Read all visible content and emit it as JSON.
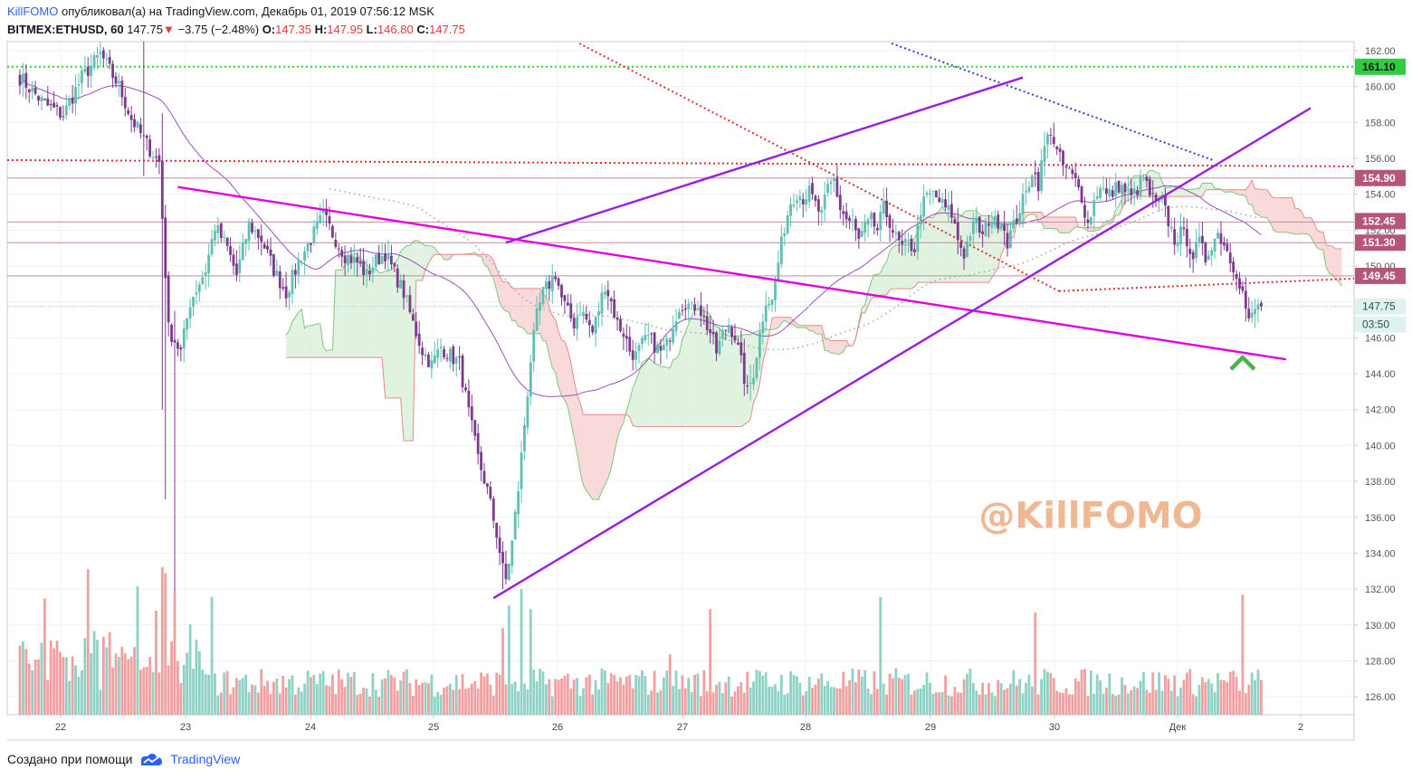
{
  "header": {
    "author": "KillFOMO",
    "published_text": "опубликовал(а) на TradingView.com, Декабрь 01, 2019 07:56:12 MSK",
    "symbol": "BITMEX:ETHUSD, 60",
    "last": "147.75",
    "change_arrow": "▼",
    "change": "−3.75 (−2.48%)",
    "o_label": "O:",
    "o_value": "147.35",
    "h_label": "H:",
    "h_value": "147.95",
    "l_label": "L:",
    "l_value": "146.80",
    "c_label": "C:",
    "c_value": "147.75"
  },
  "footer": {
    "created_with": "Создано при помощи",
    "brand": "TradingView",
    "logo_icon": "tradingview-logo-icon"
  },
  "watermark": "@KillFOMO",
  "colors": {
    "bull": "#5fbfb0",
    "bear": "#7b3a8a",
    "vol_up": "#8fd1c5",
    "vol_down": "#f0a0a0",
    "trendline_magenta": "#e000e0",
    "trendline_purple": "#9b1de0",
    "support_green": "#22dd22",
    "level_red": "#e03030",
    "level_blue": "#3040d0",
    "cloud_red": "#f7d0d0",
    "cloud_green": "#d8efd8",
    "price_tag": "#b5557a",
    "green_tag": "#2ecc40",
    "watermark": "#f0b890",
    "arrow": "#4caf50"
  },
  "chart_data": {
    "type": "candlestick",
    "symbol": "BITMEX:ETHUSD",
    "interval": "60",
    "ylim": [
      125,
      162.5
    ],
    "grid": true,
    "y_ticks": [
      126,
      128,
      130,
      132,
      134,
      136,
      138,
      140,
      142,
      144,
      146,
      148,
      150,
      152,
      154,
      156,
      158,
      160,
      162
    ],
    "x_ticks": [
      "22",
      "23",
      "24",
      "25",
      "26",
      "27",
      "28",
      "29",
      "30",
      "Дек",
      "2"
    ],
    "price_labels": [
      {
        "text": "161.10",
        "value": 161.1,
        "style": "green"
      },
      {
        "text": "154.90",
        "value": 154.9,
        "style": "level"
      },
      {
        "text": "152.45",
        "value": 152.45,
        "style": "level"
      },
      {
        "text": "151.30",
        "value": 151.3,
        "style": "level"
      },
      {
        "text": "149.45",
        "value": 149.45,
        "style": "level"
      },
      {
        "text": "147.75",
        "value": 147.75,
        "style": "last"
      },
      {
        "text": "03:50",
        "value": 146.8,
        "style": "countdown"
      }
    ],
    "horizontal_levels": [
      161.1,
      155.9,
      154.9,
      152.45,
      151.3,
      149.45
    ],
    "close_path": [
      [
        0,
        160.5
      ],
      [
        8,
        159.0
      ],
      [
        14,
        158.4
      ],
      [
        20,
        160.5
      ],
      [
        26,
        161.8
      ],
      [
        32,
        160.0
      ],
      [
        36,
        158.2
      ],
      [
        42,
        156.5
      ],
      [
        45,
        155.8
      ],
      [
        48,
        146.5
      ],
      [
        52,
        145.2
      ],
      [
        55,
        148.0
      ],
      [
        60,
        149.8
      ],
      [
        63,
        152.2
      ],
      [
        67,
        151.0
      ],
      [
        70,
        149.5
      ],
      [
        74,
        152.3
      ],
      [
        78,
        151.5
      ],
      [
        82,
        149.8
      ],
      [
        86,
        148.5
      ],
      [
        90,
        150.2
      ],
      [
        94,
        151.5
      ],
      [
        98,
        152.8
      ],
      [
        101,
        151.8
      ],
      [
        105,
        150.6
      ],
      [
        109,
        150.2
      ],
      [
        112,
        149.5
      ],
      [
        115,
        150.3
      ],
      [
        118,
        150.7
      ],
      [
        121,
        149.6
      ],
      [
        124,
        148.5
      ],
      [
        127,
        146.8
      ],
      [
        130,
        145.3
      ],
      [
        133,
        144.5
      ],
      [
        136,
        145.5
      ],
      [
        139,
        145.0
      ],
      [
        142,
        144.6
      ],
      [
        145,
        141.8
      ],
      [
        148,
        139.3
      ],
      [
        151,
        137.5
      ],
      [
        154,
        135.1
      ],
      [
        156,
        133.1
      ],
      [
        157,
        132.5
      ],
      [
        159,
        134.6
      ],
      [
        161,
        137.6
      ],
      [
        163,
        141.2
      ],
      [
        165,
        144.8
      ],
      [
        167,
        147.2
      ],
      [
        169,
        148.5
      ],
      [
        171,
        149.0
      ],
      [
        173,
        149.6
      ],
      [
        175,
        148.2
      ],
      [
        177,
        147.4
      ],
      [
        179,
        146.8
      ],
      [
        181,
        147.6
      ],
      [
        183,
        147.0
      ],
      [
        185,
        146.3
      ],
      [
        187,
        147.6
      ],
      [
        189,
        149.0
      ],
      [
        191,
        148.0
      ],
      [
        193,
        146.8
      ],
      [
        195,
        146.3
      ],
      [
        197,
        145.3
      ],
      [
        199,
        145.0
      ],
      [
        201,
        145.6
      ],
      [
        203,
        146.0
      ],
      [
        205,
        145.6
      ],
      [
        207,
        145.2
      ],
      [
        209,
        145.6
      ],
      [
        211,
        146.8
      ],
      [
        213,
        147.8
      ],
      [
        215,
        148.0
      ],
      [
        217,
        147.6
      ],
      [
        219,
        148.0
      ],
      [
        221,
        147.0
      ],
      [
        223,
        146.3
      ],
      [
        225,
        145.2
      ],
      [
        227,
        146.2
      ],
      [
        229,
        146.8
      ],
      [
        231,
        146.1
      ],
      [
        233,
        144.6
      ],
      [
        235,
        142.9
      ],
      [
        237,
        144.1
      ],
      [
        239,
        146.2
      ],
      [
        241,
        148.2
      ],
      [
        243,
        148.0
      ],
      [
        245,
        150.2
      ],
      [
        247,
        152.2
      ],
      [
        249,
        153.6
      ],
      [
        251,
        154.1
      ],
      [
        253,
        153.8
      ],
      [
        255,
        154.1
      ],
      [
        257,
        153.4
      ],
      [
        259,
        152.8
      ],
      [
        261,
        154.3
      ],
      [
        263,
        154.8
      ],
      [
        265,
        153.2
      ],
      [
        267,
        152.6
      ],
      [
        269,
        152.3
      ],
      [
        271,
        151.4
      ],
      [
        273,
        152.1
      ],
      [
        275,
        152.5
      ],
      [
        277,
        152.0
      ],
      [
        279,
        153.2
      ],
      [
        281,
        152.5
      ],
      [
        283,
        151.5
      ],
      [
        285,
        151.0
      ],
      [
        287,
        151.2
      ],
      [
        289,
        151.0
      ],
      [
        291,
        153.2
      ],
      [
        293,
        153.8
      ],
      [
        295,
        154.0
      ],
      [
        297,
        153.6
      ],
      [
        299,
        153.2
      ],
      [
        301,
        152.9
      ],
      [
        303,
        151.5
      ],
      [
        305,
        150.7
      ],
      [
        307,
        151.9
      ],
      [
        309,
        152.4
      ],
      [
        311,
        151.6
      ],
      [
        313,
        152.6
      ],
      [
        315,
        152.4
      ],
      [
        317,
        152.7
      ],
      [
        319,
        151.4
      ],
      [
        321,
        152.2
      ],
      [
        323,
        153.2
      ],
      [
        325,
        154.0
      ],
      [
        327,
        155.4
      ],
      [
        329,
        154.6
      ],
      [
        331,
        156.6
      ],
      [
        333,
        157.6
      ],
      [
        335,
        156.3
      ],
      [
        337,
        155.6
      ],
      [
        339,
        155.2
      ],
      [
        341,
        154.7
      ],
      [
        343,
        153.9
      ],
      [
        345,
        152.3
      ],
      [
        347,
        153.6
      ],
      [
        349,
        154.6
      ],
      [
        351,
        153.9
      ],
      [
        353,
        154.1
      ],
      [
        355,
        154.5
      ],
      [
        357,
        154.2
      ],
      [
        359,
        153.8
      ],
      [
        361,
        154.3
      ],
      [
        363,
        154.9
      ],
      [
        365,
        154.0
      ],
      [
        367,
        153.4
      ],
      [
        369,
        153.6
      ],
      [
        371,
        152.5
      ],
      [
        373,
        151.5
      ],
      [
        375,
        151.8
      ],
      [
        377,
        151.5
      ],
      [
        379,
        150.6
      ],
      [
        381,
        151.3
      ],
      [
        383,
        150.4
      ],
      [
        385,
        151.3
      ],
      [
        387,
        151.8
      ],
      [
        389,
        151.3
      ],
      [
        391,
        150.4
      ],
      [
        393,
        149.7
      ],
      [
        395,
        148.5
      ],
      [
        397,
        146.8
      ],
      [
        399,
        147.6
      ],
      [
        401,
        147.75
      ]
    ],
    "volume_max": 131,
    "ichimoku_cloud": true,
    "trend_lines": [
      {
        "from": [
          51,
          154.4
        ],
        "to": [
          409,
          144.8
        ],
        "color": "magenta"
      },
      {
        "from": [
          153,
          131.5
        ],
        "to": [
          417,
          158.8
        ],
        "color": "purple"
      },
      {
        "from": [
          157,
          151.3
        ],
        "to": [
          324,
          160.5
        ],
        "color": "purple"
      }
    ],
    "annotation": {
      "type": "up-chevron",
      "x": 395,
      "price": 144.7
    }
  }
}
